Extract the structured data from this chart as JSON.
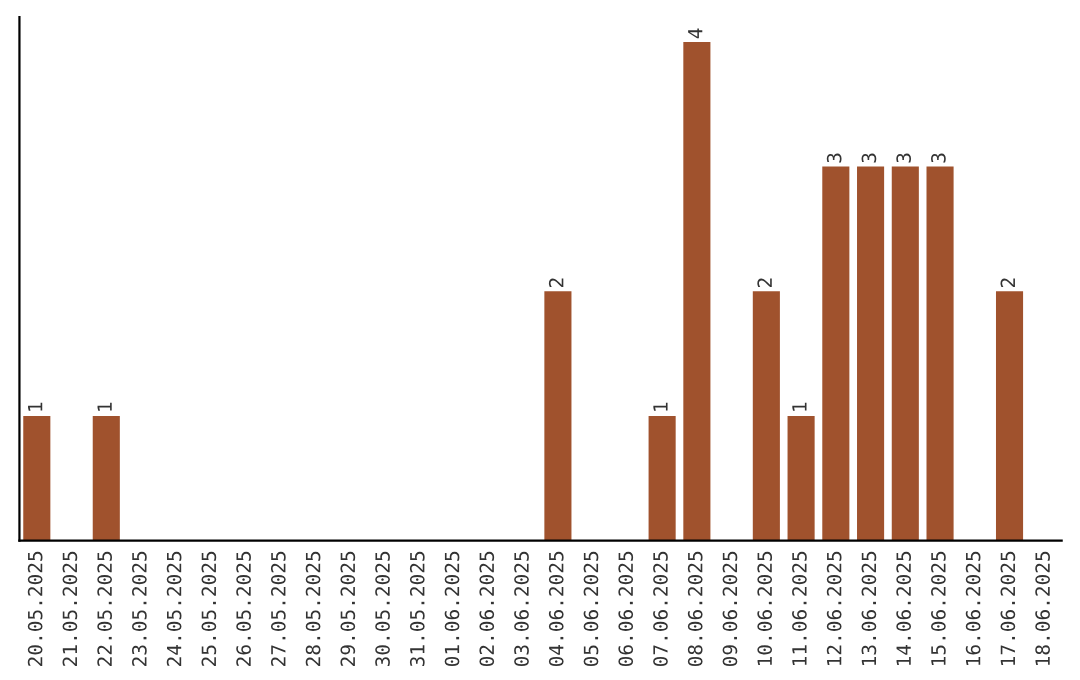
{
  "chart_data": {
    "type": "bar",
    "categories": [
      "20.05.2025",
      "21.05.2025",
      "22.05.2025",
      "23.05.2025",
      "24.05.2025",
      "25.05.2025",
      "26.05.2025",
      "27.05.2025",
      "28.05.2025",
      "29.05.2025",
      "30.05.2025",
      "31.05.2025",
      "01.06.2025",
      "02.06.2025",
      "03.06.2025",
      "04.06.2025",
      "05.06.2025",
      "06.06.2025",
      "07.06.2025",
      "08.06.2025",
      "09.06.2025",
      "10.06.2025",
      "11.06.2025",
      "12.06.2025",
      "13.06.2025",
      "14.06.2025",
      "15.06.2025",
      "16.06.2025",
      "17.06.2025",
      "18.06.2025"
    ],
    "values": [
      1,
      0,
      1,
      0,
      0,
      0,
      0,
      0,
      0,
      0,
      0,
      0,
      0,
      0,
      0,
      2,
      0,
      0,
      1,
      4,
      0,
      2,
      1,
      3,
      3,
      3,
      3,
      0,
      2,
      0
    ],
    "value_labels": [
      "1",
      null,
      "1",
      null,
      null,
      null,
      null,
      null,
      null,
      null,
      null,
      null,
      null,
      null,
      null,
      "2",
      null,
      null,
      "1",
      "4",
      null,
      "2",
      "1",
      "3",
      "3",
      "3",
      "3",
      null,
      "2",
      null
    ],
    "color": "#a0522d",
    "grid": false,
    "legend": false
  }
}
